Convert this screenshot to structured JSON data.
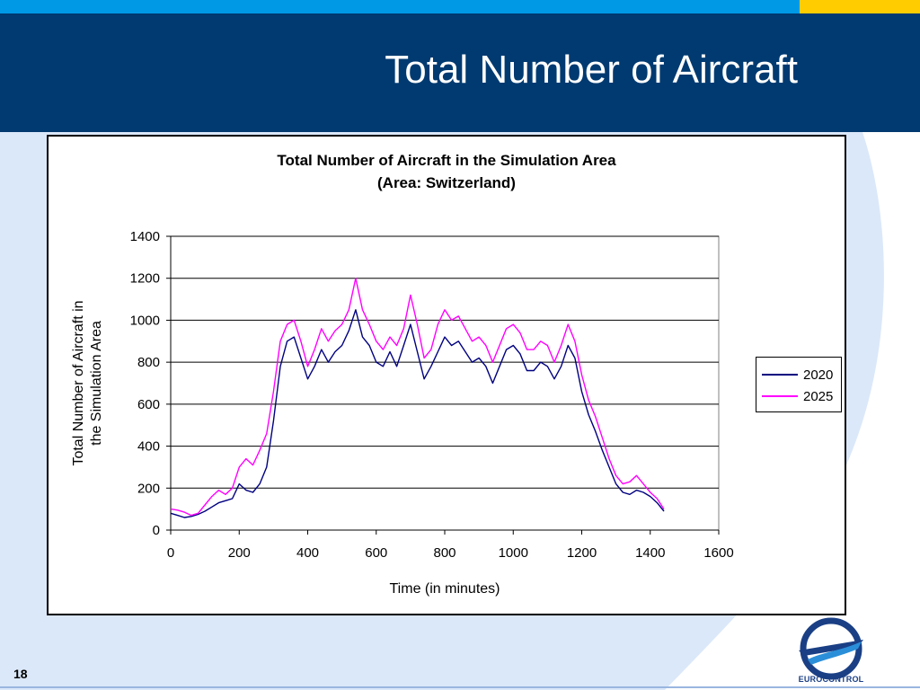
{
  "slide": {
    "title": "Total Number of Aircraft",
    "page_number": "18",
    "logo_text": "EUROCONTROL",
    "colors": {
      "header_blue": "#003a70",
      "strip_blue": "#0099e6",
      "strip_yellow": "#ffcc00",
      "background_light": "#dbe8f9"
    }
  },
  "chart_data": {
    "type": "line",
    "title": "Total Number of Aircraft in the Simulation Area",
    "subtitle": "(Area: Switzerland)",
    "xlabel": "Time (in minutes)",
    "ylabel": "Total Number of Aircraft in the Simulation Area",
    "xlim": [
      0,
      1600
    ],
    "ylim": [
      0,
      1400
    ],
    "x_ticks": [
      0,
      200,
      400,
      600,
      800,
      1000,
      1200,
      1400,
      1600
    ],
    "y_ticks": [
      0,
      200,
      400,
      600,
      800,
      1000,
      1200,
      1400
    ],
    "grid": "horizontal",
    "legend": "right",
    "series": [
      {
        "name": "2020",
        "color": "#000080",
        "x": [
          0,
          20,
          40,
          60,
          80,
          100,
          120,
          140,
          160,
          180,
          200,
          220,
          240,
          260,
          280,
          300,
          320,
          340,
          360,
          380,
          400,
          420,
          440,
          460,
          480,
          500,
          520,
          540,
          560,
          580,
          600,
          620,
          640,
          660,
          680,
          700,
          720,
          740,
          760,
          780,
          800,
          820,
          840,
          860,
          880,
          900,
          920,
          940,
          960,
          980,
          1000,
          1020,
          1040,
          1060,
          1080,
          1100,
          1120,
          1140,
          1160,
          1180,
          1200,
          1220,
          1240,
          1260,
          1280,
          1300,
          1320,
          1340,
          1360,
          1380,
          1400,
          1420,
          1440
        ],
        "values": [
          80,
          70,
          60,
          65,
          75,
          90,
          110,
          130,
          140,
          150,
          220,
          190,
          180,
          220,
          300,
          520,
          780,
          900,
          920,
          820,
          720,
          780,
          860,
          800,
          850,
          880,
          950,
          1050,
          920,
          880,
          800,
          780,
          850,
          780,
          880,
          980,
          850,
          720,
          780,
          850,
          920,
          880,
          900,
          850,
          800,
          820,
          780,
          700,
          780,
          860,
          880,
          840,
          760,
          760,
          800,
          780,
          720,
          780,
          880,
          820,
          660,
          550,
          470,
          380,
          300,
          220,
          180,
          170,
          190,
          180,
          160,
          130,
          90
        ]
      },
      {
        "name": "2025",
        "color": "#ff00ff",
        "x": [
          0,
          20,
          40,
          60,
          80,
          100,
          120,
          140,
          160,
          180,
          200,
          220,
          240,
          260,
          280,
          300,
          320,
          340,
          360,
          380,
          400,
          420,
          440,
          460,
          480,
          500,
          520,
          540,
          560,
          580,
          600,
          620,
          640,
          660,
          680,
          700,
          720,
          740,
          760,
          780,
          800,
          820,
          840,
          860,
          880,
          900,
          920,
          940,
          960,
          980,
          1000,
          1020,
          1040,
          1060,
          1080,
          1100,
          1120,
          1140,
          1160,
          1180,
          1200,
          1220,
          1240,
          1260,
          1280,
          1300,
          1320,
          1340,
          1360,
          1380,
          1400,
          1420,
          1440
        ],
        "values": [
          100,
          95,
          85,
          70,
          80,
          120,
          160,
          190,
          170,
          200,
          300,
          340,
          310,
          380,
          460,
          660,
          900,
          980,
          1000,
          900,
          780,
          860,
          960,
          900,
          950,
          980,
          1050,
          1200,
          1050,
          980,
          900,
          860,
          920,
          880,
          960,
          1120,
          980,
          820,
          860,
          980,
          1050,
          1000,
          1020,
          960,
          900,
          920,
          880,
          800,
          880,
          960,
          980,
          940,
          860,
          860,
          900,
          880,
          800,
          880,
          980,
          900,
          740,
          620,
          540,
          440,
          340,
          260,
          220,
          230,
          260,
          220,
          180,
          150,
          100
        ]
      }
    ]
  }
}
